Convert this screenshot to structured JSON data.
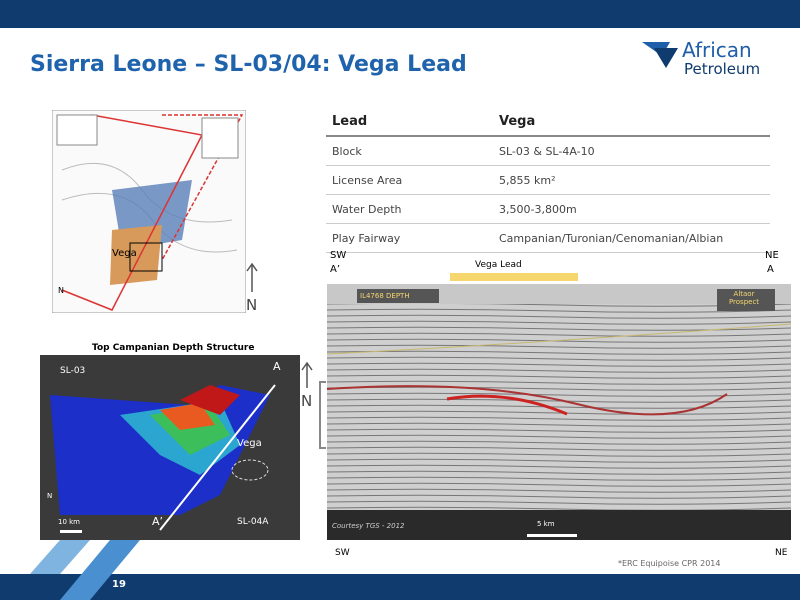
{
  "header": {
    "title": "Sierra Leone – SL-03/04: Vega Lead",
    "logo": {
      "line1": "African",
      "line2": "Petroleum"
    }
  },
  "table": {
    "header": [
      "Lead",
      "Vega"
    ],
    "rows": [
      [
        "Block",
        "SL-03 & SL-4A-10"
      ],
      [
        "License Area",
        "5,855 km²"
      ],
      [
        "Water Depth",
        "3,500-3,800m"
      ],
      [
        "Play Fairway",
        "Campanian/Turonian/Cenomanian/Albian"
      ]
    ]
  },
  "location_map": {
    "label": "Vega",
    "north": "N",
    "north_large": "N"
  },
  "depth_map": {
    "title": "Top Campanian Depth Structure",
    "block_west": "SL-03",
    "point_a": "A",
    "label": "Vega",
    "point_a_prime": "A’",
    "block_east": "SL-04A",
    "scale": "10 km",
    "north": "N"
  },
  "seismic": {
    "sw_top": "SW",
    "a_prime": "A’",
    "ne_top": "NE",
    "a": "A",
    "lead": "Vega Lead",
    "line_id": "IL4768 DEPTH",
    "prospect": "Altaor Prospect",
    "courtesy": "Courtesy TGS - 2012",
    "scale": "5 km",
    "sw_bottom": "SW",
    "ne_bottom": "NE",
    "north": "N"
  },
  "footnote": "*ERC Equipoise CPR 2014",
  "page_number": "19"
}
